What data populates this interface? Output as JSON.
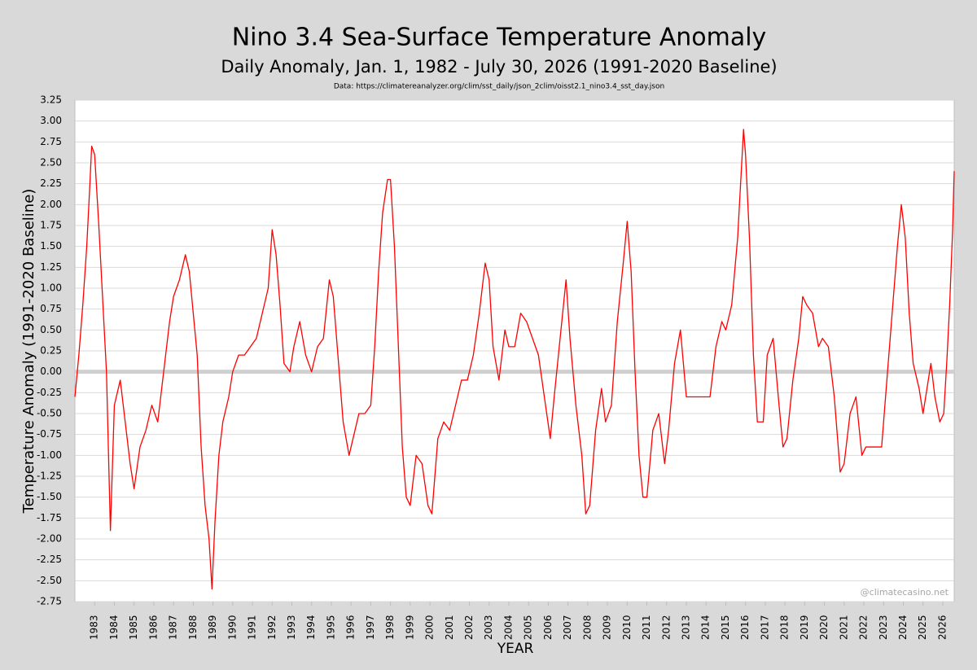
{
  "chart_data": {
    "type": "line",
    "title": "Nino 3.4 Sea-Surface Temperature Anomaly",
    "subtitle": "Daily Anomaly, Jan. 1, 1982 - July 30, 2026 (1991-2020 Baseline)",
    "source": "Data: https://climatereanalyzer.org/clim/sst_daily/json_2clim/oisst2.1_nino3.4_sst_day.json",
    "watermark": "@climatecasino.net",
    "x_label": "YEAR",
    "y_label": "Temperature Anomaly (1991-2020 Baseline)",
    "color": "#ff0000",
    "grid": true,
    "xlim": [
      1982.0,
      2026.58
    ],
    "ylim": [
      -2.75,
      3.25
    ],
    "xticks": [
      1983,
      1984,
      1985,
      1986,
      1987,
      1988,
      1989,
      1990,
      1991,
      1992,
      1993,
      1994,
      1995,
      1996,
      1997,
      1998,
      1999,
      2000,
      2001,
      2002,
      2003,
      2004,
      2005,
      2006,
      2007,
      2008,
      2009,
      2010,
      2011,
      2012,
      2013,
      2014,
      2015,
      2016,
      2017,
      2018,
      2019,
      2020,
      2021,
      2022,
      2023,
      2024,
      2025,
      2026
    ],
    "yticks": [
      {
        "value": 3.25,
        "label": "3.25"
      },
      {
        "value": 3.0,
        "label": "3.00"
      },
      {
        "value": 2.75,
        "label": "2.75"
      },
      {
        "value": 2.5,
        "label": "2.50"
      },
      {
        "value": 2.25,
        "label": "2.25"
      },
      {
        "value": 2.0,
        "label": "2.00"
      },
      {
        "value": 1.75,
        "label": "1.75"
      },
      {
        "value": 1.5,
        "label": "1.50"
      },
      {
        "value": 1.25,
        "label": "1.25"
      },
      {
        "value": 1.0,
        "label": "1.00"
      },
      {
        "value": 0.75,
        "label": "0.75"
      },
      {
        "value": 0.5,
        "label": "0.50"
      },
      {
        "value": 0.25,
        "label": "0.25"
      },
      {
        "value": 0,
        "label": "0.00"
      },
      {
        "value": -0.25,
        "label": "-0.25"
      },
      {
        "value": -0.5,
        "label": "-0.50"
      },
      {
        "value": -0.75,
        "label": "-0.75"
      },
      {
        "value": -1.0,
        "label": "-1.00"
      },
      {
        "value": -1.25,
        "label": "-1.25"
      },
      {
        "value": -1.5,
        "label": "-1.50"
      },
      {
        "value": -1.75,
        "label": "-1.75"
      },
      {
        "value": -2.0,
        "label": "-2.00"
      },
      {
        "value": -2.25,
        "label": "-2.25"
      },
      {
        "value": -2.5,
        "label": "-2.50"
      },
      {
        "value": -2.75,
        "label": "-2.75"
      }
    ],
    "x": [
      1982.0,
      1982.2,
      1982.4,
      1982.6,
      1982.75,
      1982.85,
      1983.0,
      1983.2,
      1983.4,
      1983.6,
      1983.8,
      1984.0,
      1984.3,
      1984.5,
      1984.8,
      1985.0,
      1985.3,
      1985.6,
      1985.9,
      1986.2,
      1986.5,
      1986.8,
      1987.0,
      1987.3,
      1987.6,
      1987.8,
      1988.0,
      1988.2,
      1988.4,
      1988.6,
      1988.8,
      1988.95,
      1989.1,
      1989.3,
      1989.5,
      1989.8,
      1990.0,
      1990.3,
      1990.6,
      1990.9,
      1991.2,
      1991.5,
      1991.8,
      1992.0,
      1992.2,
      1992.4,
      1992.6,
      1992.9,
      1993.1,
      1993.4,
      1993.7,
      1994.0,
      1994.3,
      1994.6,
      1994.9,
      1995.1,
      1995.3,
      1995.6,
      1995.9,
      1996.1,
      1996.4,
      1996.7,
      1997.0,
      1997.2,
      1997.4,
      1997.6,
      1997.85,
      1998.0,
      1998.2,
      1998.4,
      1998.6,
      1998.8,
      1999.0,
      1999.3,
      1999.6,
      1999.9,
      2000.1,
      2000.4,
      2000.7,
      2001.0,
      2001.3,
      2001.6,
      2001.9,
      2002.2,
      2002.5,
      2002.8,
      2003.0,
      2003.2,
      2003.5,
      2003.8,
      2004.0,
      2004.3,
      2004.6,
      2004.9,
      2005.2,
      2005.5,
      2005.8,
      2006.1,
      2006.3,
      2006.6,
      2006.9,
      2007.1,
      2007.4,
      2007.7,
      2007.9,
      2008.1,
      2008.4,
      2008.7,
      2008.9,
      2009.2,
      2009.5,
      2009.8,
      2010.0,
      2010.2,
      2010.4,
      2010.6,
      2010.8,
      2011.0,
      2011.3,
      2011.6,
      2011.9,
      2012.1,
      2012.4,
      2012.7,
      2013.0,
      2013.3,
      2013.6,
      2013.9,
      2014.2,
      2014.5,
      2014.8,
      2015.0,
      2015.3,
      2015.6,
      2015.9,
      2016.0,
      2016.2,
      2016.4,
      2016.6,
      2016.9,
      2017.1,
      2017.4,
      2017.7,
      2017.9,
      2018.1,
      2018.4,
      2018.7,
      2018.9,
      2019.1,
      2019.4,
      2019.7,
      2019.9,
      2020.2,
      2020.5,
      2020.8,
      2021.0,
      2021.3,
      2021.6,
      2021.9,
      2022.1,
      2022.4,
      2022.7,
      2022.9,
      2023.1,
      2023.4,
      2023.7,
      2023.9,
      2024.1,
      2024.3,
      2024.5,
      2024.8,
      2025.0,
      2025.2,
      2025.4,
      2025.6,
      2025.85,
      2026.05,
      2026.2,
      2026.35,
      2026.5,
      2026.58
    ],
    "values": [
      -0.3,
      0.2,
      0.8,
      1.5,
      2.2,
      2.7,
      2.6,
      1.8,
      0.9,
      0.0,
      -1.9,
      -0.4,
      -0.1,
      -0.5,
      -1.1,
      -1.4,
      -0.9,
      -0.7,
      -0.4,
      -0.6,
      0.0,
      0.6,
      0.9,
      1.1,
      1.4,
      1.2,
      0.7,
      0.2,
      -0.9,
      -1.6,
      -2.0,
      -2.6,
      -1.8,
      -1.0,
      -0.6,
      -0.3,
      0.0,
      0.2,
      0.2,
      0.3,
      0.4,
      0.7,
      1.0,
      1.7,
      1.4,
      0.8,
      0.1,
      0.0,
      0.3,
      0.6,
      0.2,
      0.0,
      0.3,
      0.4,
      1.1,
      0.9,
      0.3,
      -0.6,
      -1.0,
      -0.8,
      -0.5,
      -0.5,
      -0.4,
      0.3,
      1.2,
      1.9,
      2.3,
      2.3,
      1.5,
      0.3,
      -0.9,
      -1.5,
      -1.6,
      -1.0,
      -1.1,
      -1.6,
      -1.7,
      -0.8,
      -0.6,
      -0.7,
      -0.4,
      -0.1,
      -0.1,
      0.2,
      0.7,
      1.3,
      1.1,
      0.3,
      -0.1,
      0.5,
      0.3,
      0.3,
      0.7,
      0.6,
      0.4,
      0.2,
      -0.3,
      -0.8,
      -0.3,
      0.4,
      1.1,
      0.4,
      -0.4,
      -1.0,
      -1.7,
      -1.6,
      -0.7,
      -0.2,
      -0.6,
      -0.4,
      0.6,
      1.3,
      1.8,
      1.2,
      0.0,
      -1.0,
      -1.5,
      -1.5,
      -0.7,
      -0.5,
      -1.1,
      -0.7,
      0.1,
      0.5,
      -0.3,
      -0.3,
      -0.3,
      -0.3,
      -0.3,
      0.3,
      0.6,
      0.5,
      0.8,
      1.6,
      2.9,
      2.6,
      1.6,
      0.2,
      -0.6,
      -0.6,
      0.2,
      0.4,
      -0.4,
      -0.9,
      -0.8,
      -0.1,
      0.4,
      0.9,
      0.8,
      0.7,
      0.3,
      0.4,
      0.3,
      -0.3,
      -1.2,
      -1.1,
      -0.5,
      -0.3,
      -1.0,
      -0.9,
      -0.9,
      -0.9,
      -0.9,
      -0.3,
      0.6,
      1.5,
      2.0,
      1.6,
      0.7,
      0.1,
      -0.2,
      -0.5,
      -0.2,
      0.1,
      -0.3,
      -0.6,
      -0.5,
      0.1,
      0.8,
      1.7,
      2.4
    ]
  }
}
